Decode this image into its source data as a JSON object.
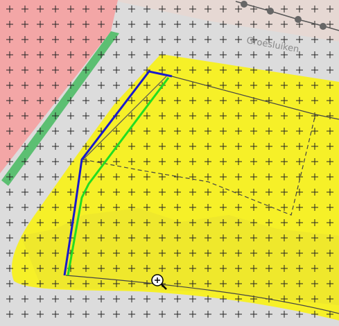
{
  "map": {
    "street_label": "Groesluiken"
  }
}
